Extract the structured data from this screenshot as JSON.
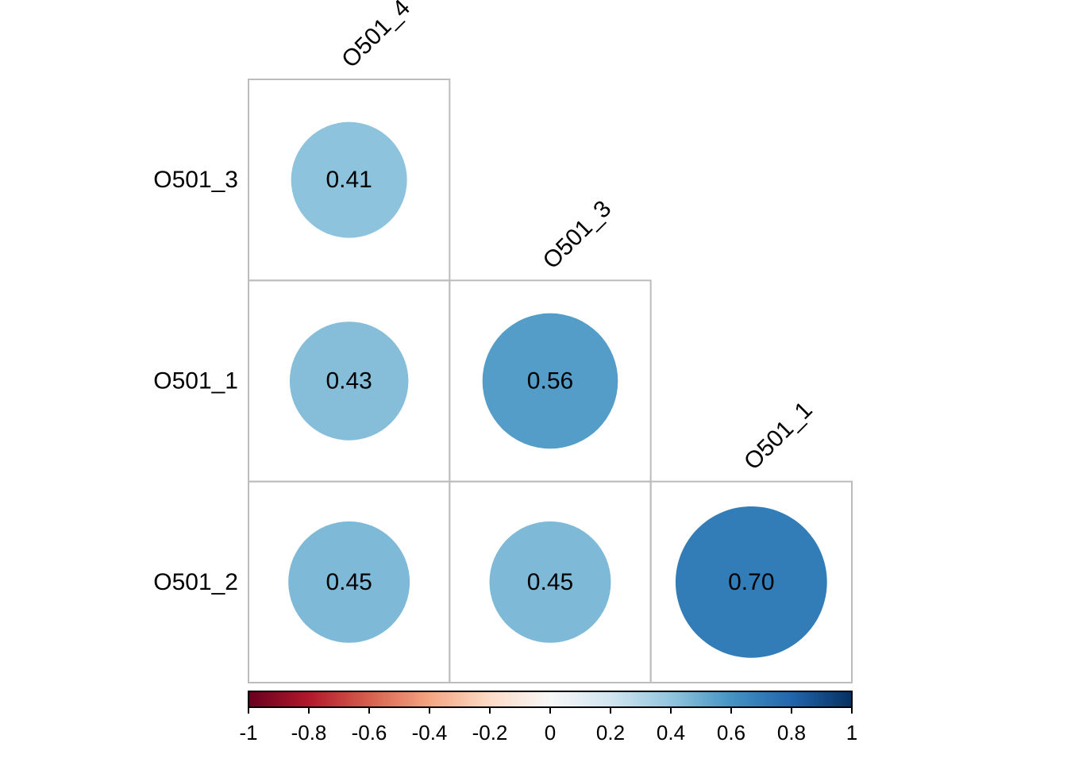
{
  "figure": {
    "background": "#ffffff",
    "text_color": "#000000",
    "grid_color": "#bcbcbc",
    "colorbar_border_color": "#000000"
  },
  "chart_data": {
    "type": "heatmap",
    "subtype": "correlation-matrix-circles",
    "title": "",
    "columns": [
      "O501_4",
      "O501_3",
      "O501_1"
    ],
    "rows": [
      "O501_3",
      "O501_1",
      "O501_2"
    ],
    "shape": "lower-triangle",
    "cells": [
      {
        "row": 0,
        "col": 0,
        "value": 0.41,
        "label": "0.41"
      },
      {
        "row": 1,
        "col": 0,
        "value": 0.43,
        "label": "0.43"
      },
      {
        "row": 1,
        "col": 1,
        "value": 0.56,
        "label": "0.56"
      },
      {
        "row": 2,
        "col": 0,
        "value": 0.45,
        "label": "0.45"
      },
      {
        "row": 2,
        "col": 1,
        "value": 0.45,
        "label": "0.45"
      },
      {
        "row": 2,
        "col": 2,
        "value": 0.7,
        "label": "0.70"
      }
    ],
    "colorbar": {
      "min": -1,
      "max": 1,
      "tick_values": [
        -1,
        -0.8,
        -0.6,
        -0.4,
        -0.2,
        0,
        0.2,
        0.4,
        0.6,
        0.8,
        1
      ],
      "tick_labels": [
        "-1",
        "-0.8",
        "-0.6",
        "-0.4",
        "-0.2",
        "0",
        "0.2",
        "0.4",
        "0.6",
        "0.8",
        "1"
      ],
      "palette": [
        "#67001F",
        "#B2182B",
        "#D6604D",
        "#F4A582",
        "#FDDBC7",
        "#F7F7F7",
        "#D1E5F0",
        "#92C5DE",
        "#4393C3",
        "#2166AC",
        "#053061"
      ],
      "legend_position": "bottom",
      "grid_on": false
    }
  }
}
